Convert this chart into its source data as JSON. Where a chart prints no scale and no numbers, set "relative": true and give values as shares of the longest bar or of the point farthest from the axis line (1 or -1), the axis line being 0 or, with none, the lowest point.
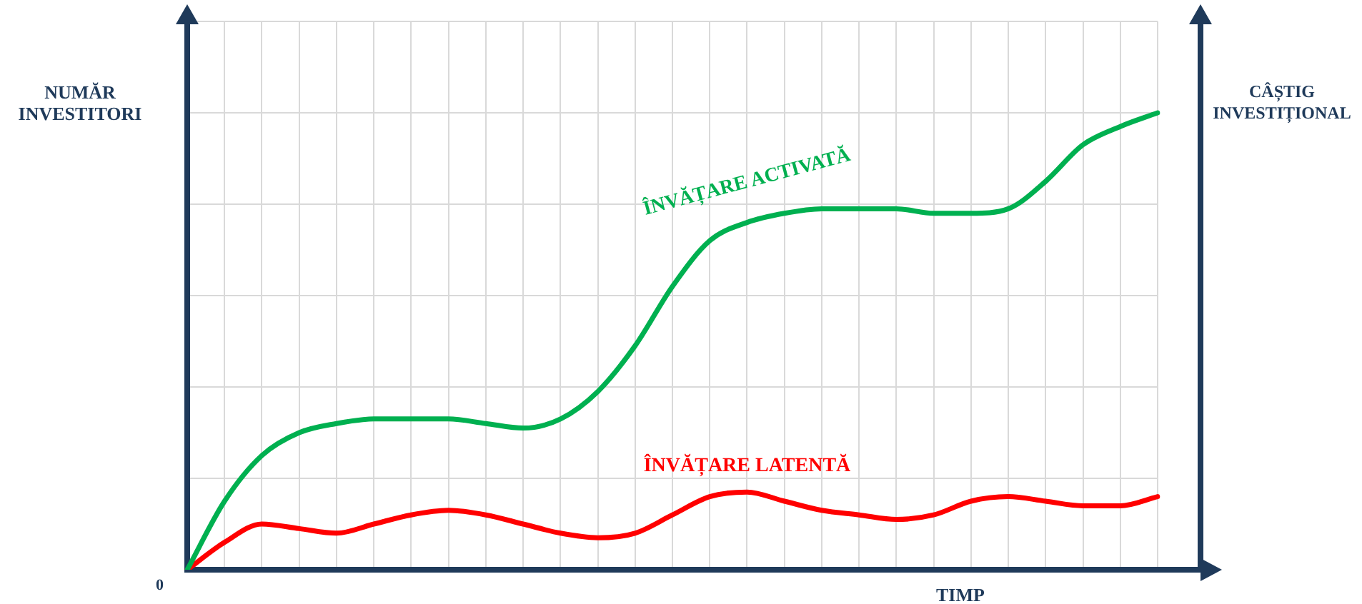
{
  "chart_data": {
    "type": "line",
    "relative": true,
    "ylabel": "NUMĂR INVESTITORI",
    "y2label": "CÂȘTIG INVESTIȚIONAL",
    "xlabel": "TIMP",
    "annotations": [
      "0"
    ],
    "grid": true,
    "legend": false,
    "marker": "none",
    "line_style": "solid",
    "categories": [
      null,
      null,
      null,
      null,
      null,
      null,
      null,
      null,
      null,
      null,
      null,
      null,
      null,
      null,
      null,
      null,
      null,
      null,
      null,
      null,
      null,
      null,
      null,
      null,
      null,
      null,
      null
    ],
    "series": [
      {
        "name": "ÎNVĂȚARE ACTIVATĂ",
        "color": "#00b050",
        "values": [
          0,
          0.15,
          0.25,
          0.3,
          0.32,
          0.33,
          0.33,
          0.33,
          0.32,
          0.31,
          0.33,
          0.39,
          0.49,
          0.62,
          0.72,
          0.76,
          0.78,
          0.79,
          0.79,
          0.79,
          0.78,
          0.78,
          0.79,
          0.85,
          0.93,
          0.97,
          1
        ]
      },
      {
        "name": "ÎNVĂȚARE LATENTĂ",
        "color": "#ff0000",
        "values": [
          0,
          0.06,
          0.1,
          0.09,
          0.08,
          0.1,
          0.12,
          0.13,
          0.12,
          0.1,
          0.08,
          0.07,
          0.08,
          0.12,
          0.16,
          0.17,
          0.15,
          0.13,
          0.12,
          0.11,
          0.12,
          0.15,
          0.16,
          0.15,
          0.14,
          0.14,
          0.16
        ]
      }
    ]
  }
}
